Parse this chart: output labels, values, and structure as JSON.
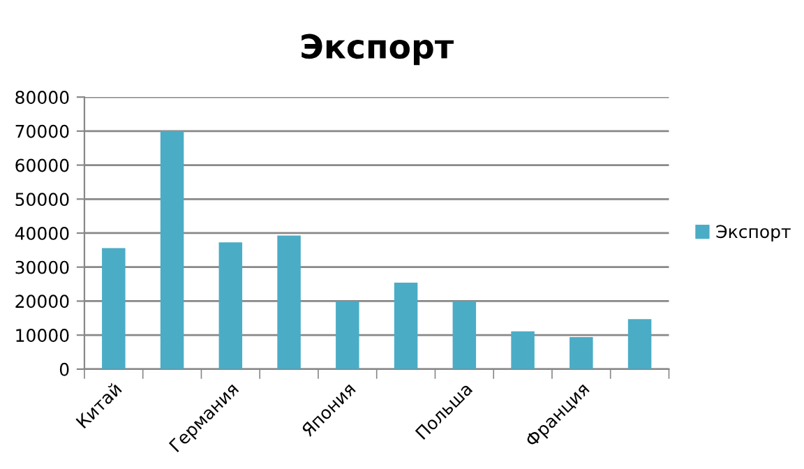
{
  "chart_data": {
    "type": "bar",
    "title": "Экспорт",
    "categories": [
      "Китай",
      null,
      "Германия",
      null,
      "Япония",
      null,
      "Польша",
      null,
      "Франция",
      null
    ],
    "series": [
      {
        "name": "Экспорт",
        "color": "#4bacc6",
        "values": [
          35600,
          70000,
          37300,
          39300,
          20000,
          25400,
          20000,
          11100,
          9400,
          14700
        ]
      }
    ],
    "ylim": [
      0,
      80000
    ],
    "yticks": [
      0,
      10000,
      20000,
      30000,
      40000,
      50000,
      60000,
      70000,
      80000
    ],
    "grid": "y",
    "legend": "right"
  }
}
